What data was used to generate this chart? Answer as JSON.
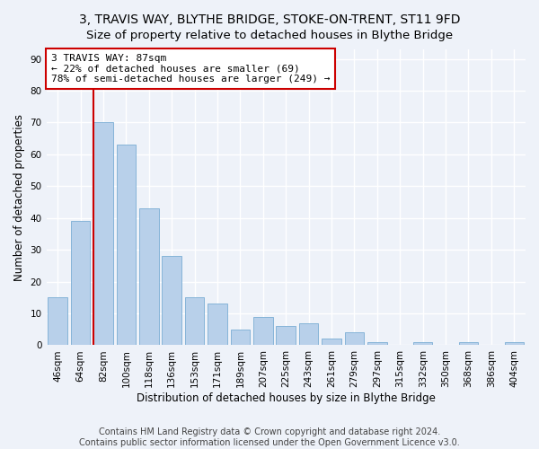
{
  "title": "3, TRAVIS WAY, BLYTHE BRIDGE, STOKE-ON-TRENT, ST11 9FD",
  "subtitle": "Size of property relative to detached houses in Blythe Bridge",
  "xlabel": "Distribution of detached houses by size in Blythe Bridge",
  "ylabel": "Number of detached properties",
  "categories": [
    "46sqm",
    "64sqm",
    "82sqm",
    "100sqm",
    "118sqm",
    "136sqm",
    "153sqm",
    "171sqm",
    "189sqm",
    "207sqm",
    "225sqm",
    "243sqm",
    "261sqm",
    "279sqm",
    "297sqm",
    "315sqm",
    "332sqm",
    "350sqm",
    "368sqm",
    "386sqm",
    "404sqm"
  ],
  "values": [
    15,
    39,
    70,
    63,
    43,
    28,
    15,
    13,
    5,
    9,
    6,
    7,
    2,
    4,
    1,
    0,
    1,
    0,
    1,
    0,
    1
  ],
  "bar_color": "#b8d0ea",
  "bar_edge_color": "#7aadd4",
  "vline_x_index": 2,
  "vline_color": "#cc0000",
  "annotation_text": "3 TRAVIS WAY: 87sqm\n← 22% of detached houses are smaller (69)\n78% of semi-detached houses are larger (249) →",
  "annotation_box_color": "white",
  "annotation_box_edge_color": "#cc0000",
  "ylim": [
    0,
    93
  ],
  "yticks": [
    0,
    10,
    20,
    30,
    40,
    50,
    60,
    70,
    80,
    90
  ],
  "footer": "Contains HM Land Registry data © Crown copyright and database right 2024.\nContains public sector information licensed under the Open Government Licence v3.0.",
  "background_color": "#eef2f9",
  "grid_color": "white",
  "title_fontsize": 10,
  "axis_label_fontsize": 8.5,
  "tick_fontsize": 7.5,
  "annotation_fontsize": 8,
  "footer_fontsize": 7
}
